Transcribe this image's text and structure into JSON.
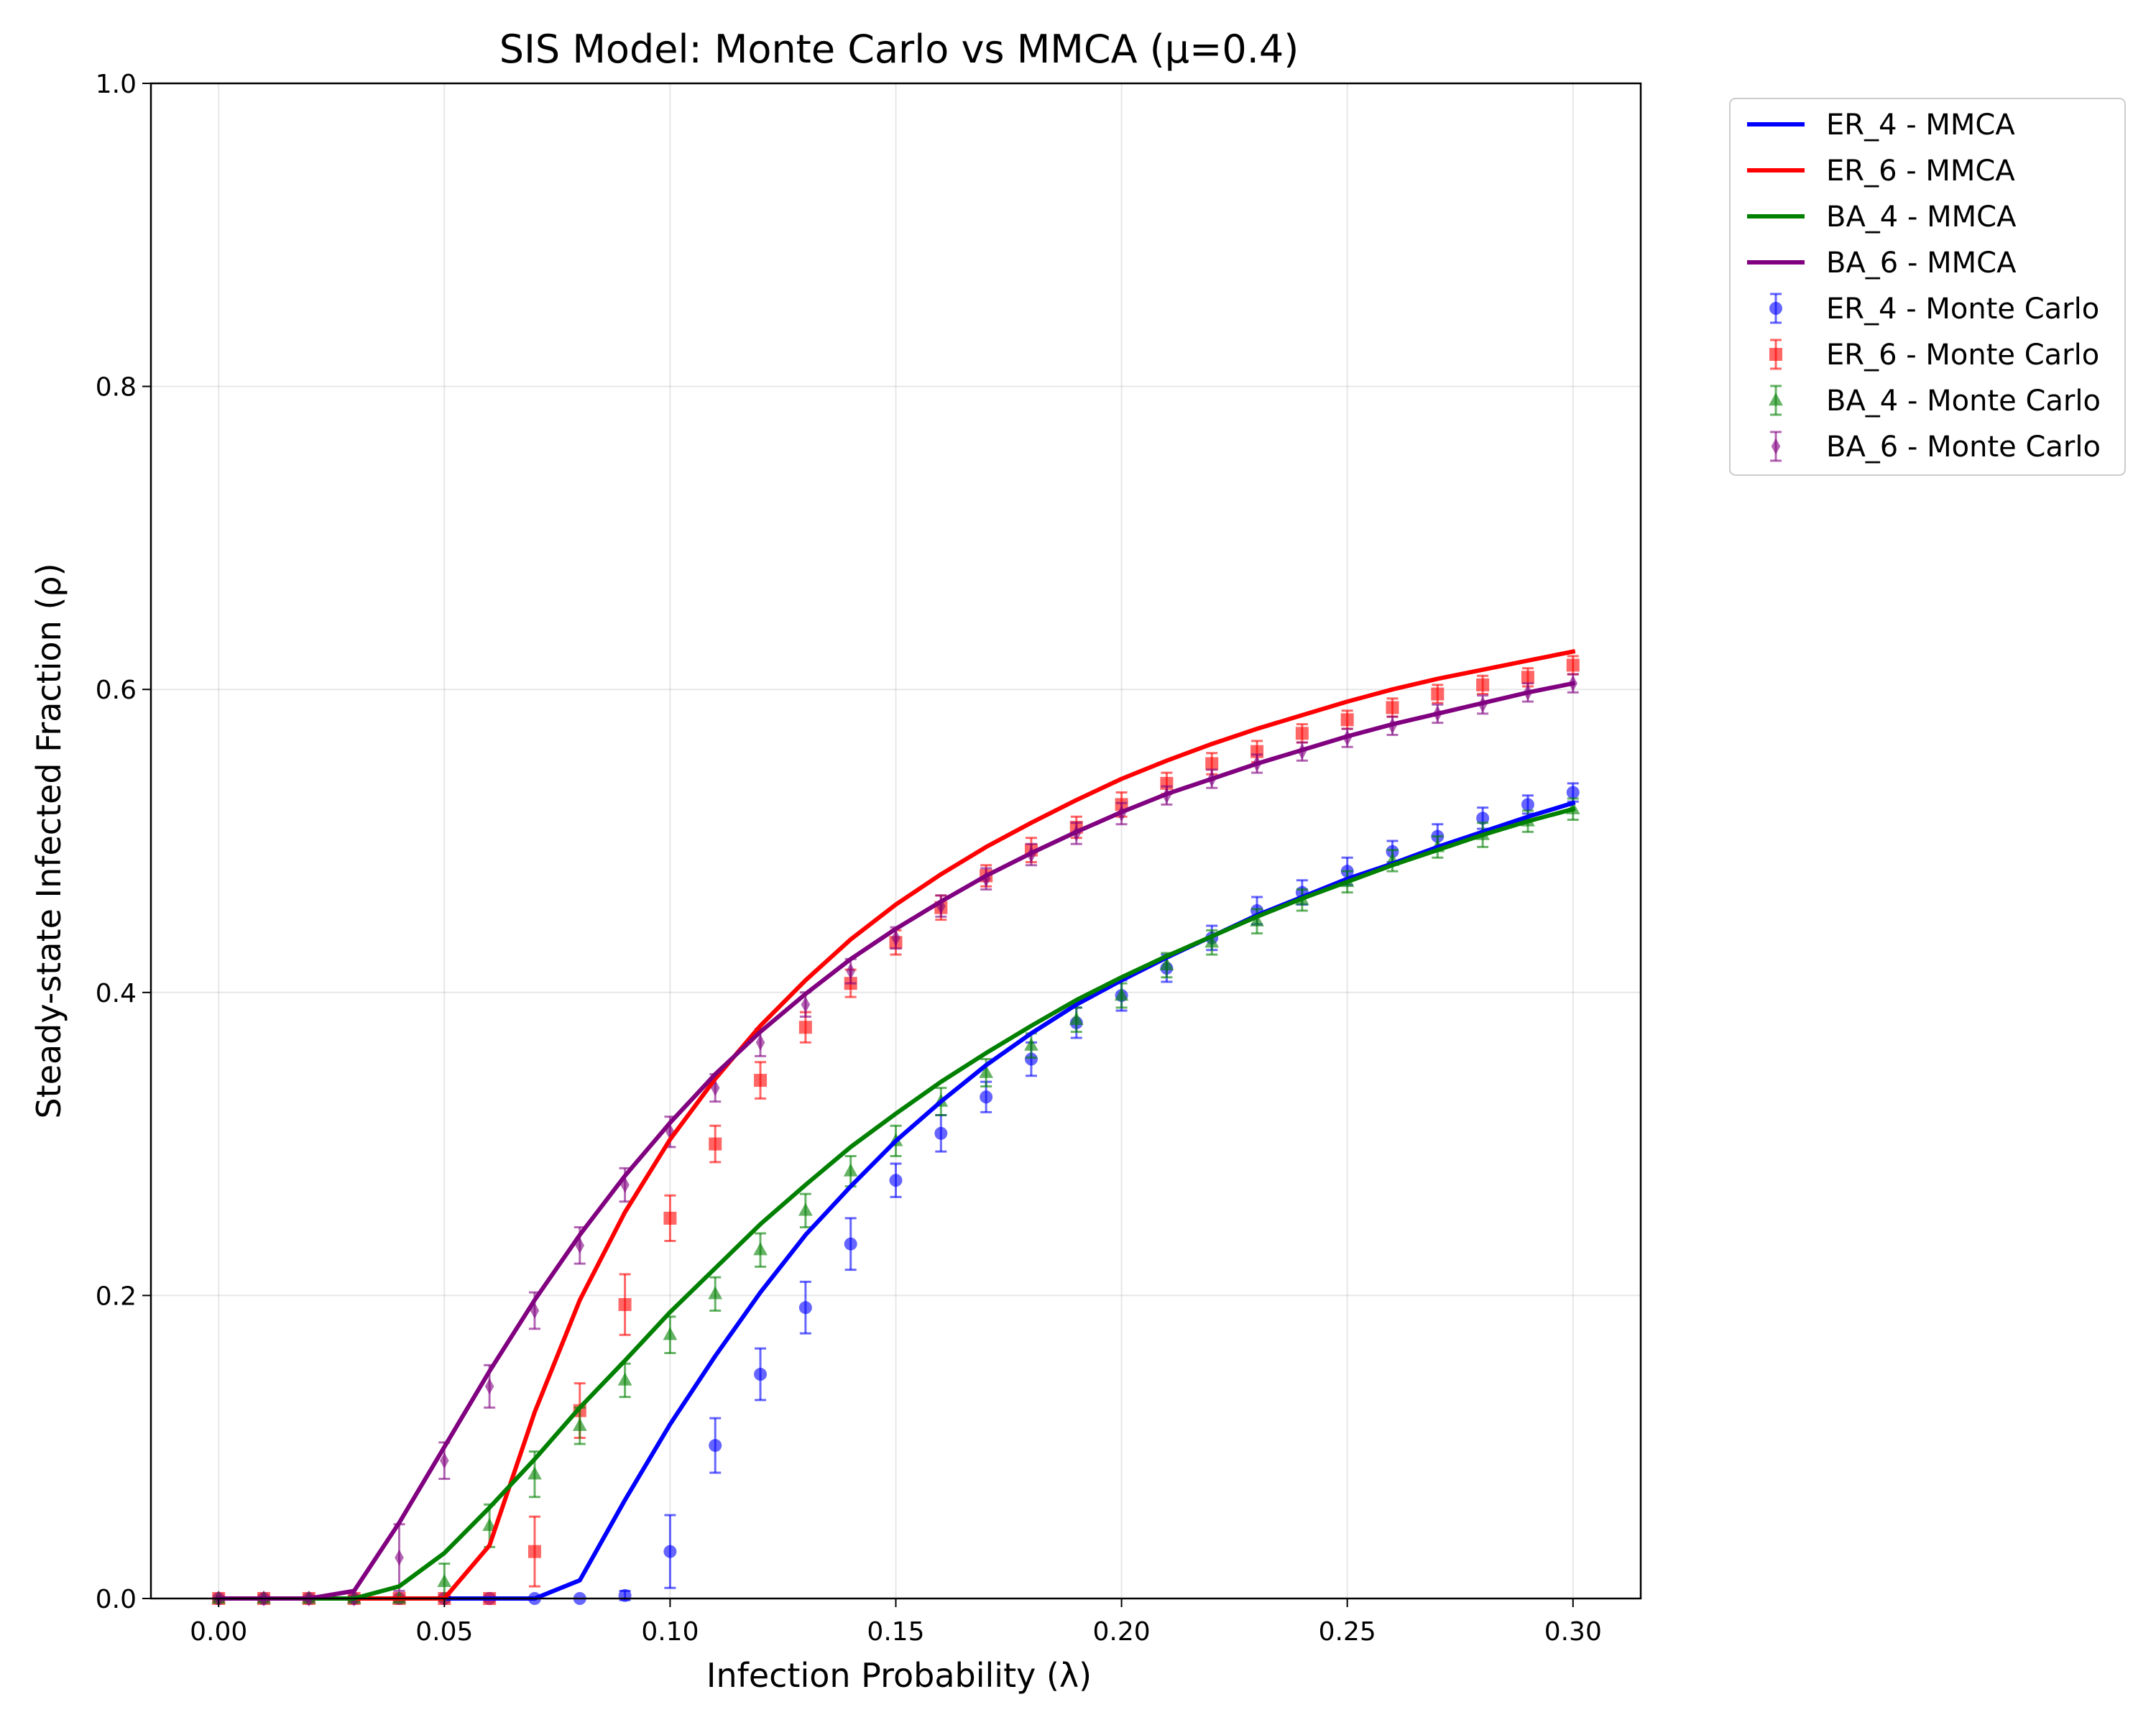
{
  "chart_data": {
    "type": "line",
    "title": "SIS Model: Monte Carlo vs MMCA (μ=0.4)",
    "xlabel": "Infection Probability (λ)",
    "ylabel": "Steady-state Infected Fraction (ρ)",
    "xlim": [
      -0.015,
      0.315
    ],
    "ylim": [
      0,
      1.0
    ],
    "x_ticks": [
      "0.00",
      "0.05",
      "0.10",
      "0.15",
      "0.20",
      "0.25",
      "0.30"
    ],
    "y_ticks": [
      "0.0",
      "0.2",
      "0.4",
      "0.6",
      "0.8",
      "1.0"
    ],
    "grid": true,
    "legend_position": "outside upper right",
    "x": [
      0.0,
      0.01,
      0.02,
      0.03,
      0.04,
      0.05,
      0.06,
      0.07,
      0.08,
      0.09,
      0.1,
      0.11,
      0.12,
      0.13,
      0.14,
      0.15,
      0.16,
      0.17,
      0.18,
      0.19,
      0.2,
      0.21,
      0.22,
      0.23,
      0.24,
      0.25,
      0.26,
      0.27,
      0.28,
      0.29,
      0.3
    ],
    "series": [
      {
        "name": "ER_4 - MMCA",
        "kind": "line",
        "color": "#0000ff",
        "values": [
          0,
          0,
          0,
          0,
          0,
          0,
          0,
          0,
          0.012,
          0.065,
          0.115,
          0.16,
          0.202,
          0.24,
          0.272,
          0.302,
          0.328,
          0.352,
          0.373,
          0.392,
          0.408,
          0.423,
          0.437,
          0.451,
          0.463,
          0.475,
          0.485,
          0.496,
          0.506,
          0.516,
          0.525
        ]
      },
      {
        "name": "ER_6 - MMCA",
        "kind": "line",
        "color": "#ff0000",
        "values": [
          0,
          0,
          0,
          0,
          0,
          0,
          0.035,
          0.123,
          0.197,
          0.255,
          0.303,
          0.343,
          0.378,
          0.408,
          0.435,
          0.458,
          0.478,
          0.496,
          0.512,
          0.527,
          0.541,
          0.553,
          0.564,
          0.574,
          0.583,
          0.592,
          0.6,
          0.607,
          0.613,
          0.619,
          0.625
        ]
      },
      {
        "name": "BA_4 - MMCA",
        "kind": "line",
        "color": "#008000",
        "values": [
          0,
          0,
          0,
          0,
          0.008,
          0.03,
          0.06,
          0.092,
          0.126,
          0.157,
          0.189,
          0.218,
          0.247,
          0.273,
          0.298,
          0.32,
          0.341,
          0.36,
          0.378,
          0.395,
          0.41,
          0.424,
          0.437,
          0.45,
          0.462,
          0.473,
          0.484,
          0.494,
          0.504,
          0.513,
          0.521
        ]
      },
      {
        "name": "BA_6 - MMCA",
        "kind": "line",
        "color": "#800080",
        "values": [
          0,
          0,
          0,
          0.005,
          0.05,
          0.1,
          0.15,
          0.197,
          0.24,
          0.279,
          0.314,
          0.346,
          0.374,
          0.399,
          0.422,
          0.442,
          0.46,
          0.477,
          0.492,
          0.506,
          0.519,
          0.531,
          0.541,
          0.551,
          0.56,
          0.569,
          0.577,
          0.584,
          0.591,
          0.598,
          0.604
        ]
      },
      {
        "name": "ER_4 - Monte Carlo",
        "kind": "errorbar",
        "marker": "circle",
        "color": "#0000ff",
        "values": [
          0,
          0,
          0,
          0,
          0,
          0,
          0,
          0,
          0,
          0.002,
          0.031,
          0.101,
          0.148,
          0.192,
          0.234,
          0.276,
          0.307,
          0.331,
          0.356,
          0.38,
          0.398,
          0.416,
          0.436,
          0.454,
          0.466,
          0.48,
          0.493,
          0.503,
          0.515,
          0.524,
          0.532
        ],
        "errors": [
          0,
          0,
          0,
          0,
          0,
          0,
          0,
          0,
          0,
          0.003,
          0.024,
          0.018,
          0.017,
          0.017,
          0.017,
          0.011,
          0.012,
          0.01,
          0.011,
          0.01,
          0.01,
          0.009,
          0.008,
          0.009,
          0.008,
          0.009,
          0.007,
          0.008,
          0.007,
          0.006,
          0.006
        ]
      },
      {
        "name": "ER_6 - Monte Carlo",
        "kind": "errorbar",
        "marker": "square",
        "color": "#ff0000",
        "values": [
          0,
          0,
          0,
          0,
          0,
          0,
          0,
          0.031,
          0.124,
          0.194,
          0.251,
          0.3,
          0.342,
          0.377,
          0.406,
          0.433,
          0.456,
          0.477,
          0.494,
          0.509,
          0.524,
          0.538,
          0.551,
          0.559,
          0.571,
          0.58,
          0.588,
          0.597,
          0.603,
          0.608,
          0.616
        ],
        "errors": [
          0,
          0,
          0,
          0,
          0,
          0,
          0,
          0.023,
          0.018,
          0.02,
          0.015,
          0.012,
          0.012,
          0.01,
          0.009,
          0.008,
          0.008,
          0.007,
          0.008,
          0.007,
          0.008,
          0.007,
          0.007,
          0.007,
          0.006,
          0.006,
          0.006,
          0.006,
          0.006,
          0.006,
          0.006
        ]
      },
      {
        "name": "BA_4 - Monte Carlo",
        "kind": "errorbar",
        "marker": "triangle",
        "color": "#008000",
        "values": [
          0,
          0,
          0,
          0,
          0,
          0.011,
          0.048,
          0.082,
          0.114,
          0.144,
          0.174,
          0.201,
          0.23,
          0.256,
          0.282,
          0.302,
          0.328,
          0.347,
          0.365,
          0.382,
          0.398,
          0.418,
          0.433,
          0.447,
          0.461,
          0.473,
          0.487,
          0.496,
          0.504,
          0.513,
          0.521
        ],
        "errors": [
          0,
          0,
          0,
          0,
          0,
          0.012,
          0.014,
          0.015,
          0.012,
          0.011,
          0.012,
          0.011,
          0.011,
          0.011,
          0.01,
          0.01,
          0.009,
          0.009,
          0.008,
          0.008,
          0.008,
          0.008,
          0.008,
          0.008,
          0.007,
          0.007,
          0.007,
          0.007,
          0.008,
          0.007,
          0.007
        ]
      },
      {
        "name": "BA_6 - Monte Carlo",
        "kind": "errorbar",
        "marker": "thin_diamond",
        "color": "#800080",
        "values": [
          0,
          0,
          0,
          0,
          0.027,
          0.091,
          0.14,
          0.19,
          0.233,
          0.273,
          0.308,
          0.337,
          0.367,
          0.392,
          0.414,
          0.436,
          0.457,
          0.475,
          0.491,
          0.505,
          0.518,
          0.53,
          0.541,
          0.551,
          0.559,
          0.568,
          0.576,
          0.584,
          0.59,
          0.598,
          0.604
        ],
        "errors": [
          0,
          0,
          0,
          0,
          0.022,
          0.012,
          0.014,
          0.012,
          0.012,
          0.011,
          0.01,
          0.009,
          0.009,
          0.008,
          0.008,
          0.007,
          0.007,
          0.007,
          0.007,
          0.007,
          0.007,
          0.006,
          0.006,
          0.006,
          0.006,
          0.006,
          0.006,
          0.006,
          0.006,
          0.006,
          0.006
        ]
      }
    ]
  }
}
